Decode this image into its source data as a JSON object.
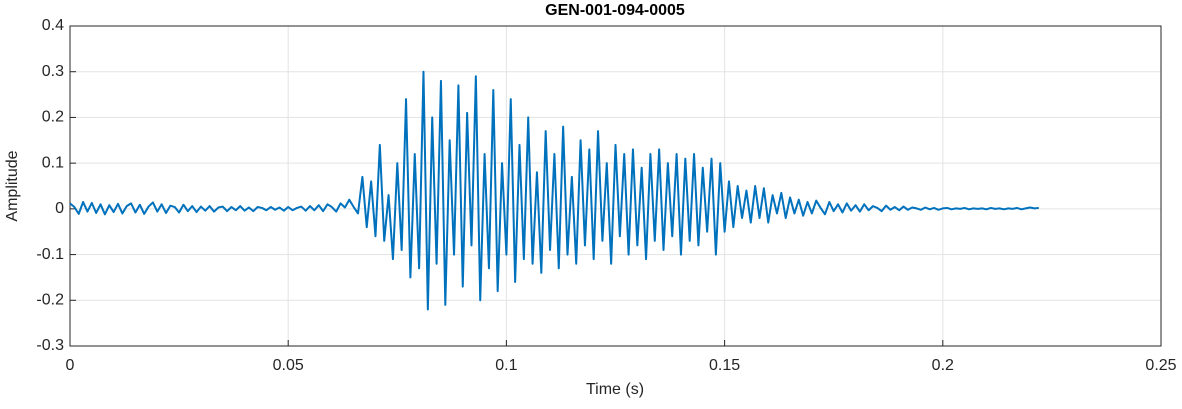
{
  "chart_data": {
    "type": "line",
    "title": "GEN-001-094-0005",
    "x_label": "Time (s)",
    "y_label": "Amplitude",
    "color": "#0072BD",
    "grid": true,
    "xlim": [
      0,
      0.25
    ],
    "xticks": [
      0,
      0.05,
      0.1,
      0.15,
      0.2,
      0.25
    ],
    "ylim": [
      -0.3,
      0.4
    ],
    "yticks": [
      -0.3,
      -0.2,
      -0.1,
      0,
      0.1,
      0.2,
      0.3,
      0.4
    ],
    "x": [
      0,
      0.001,
      0.002,
      0.003,
      0.004,
      0.005,
      0.006,
      0.007,
      0.008,
      0.009,
      0.01,
      0.011,
      0.012,
      0.013,
      0.014,
      0.015,
      0.016,
      0.017,
      0.018,
      0.019,
      0.02,
      0.021,
      0.022,
      0.023,
      0.024,
      0.025,
      0.026,
      0.027,
      0.028,
      0.029,
      0.03,
      0.031,
      0.032,
      0.033,
      0.034,
      0.035,
      0.036,
      0.037,
      0.038,
      0.039,
      0.04,
      0.041,
      0.042,
      0.043,
      0.044,
      0.045,
      0.046,
      0.047,
      0.048,
      0.049,
      0.05,
      0.051,
      0.052,
      0.053,
      0.054,
      0.055,
      0.056,
      0.057,
      0.058,
      0.059,
      0.06,
      0.061,
      0.062,
      0.063,
      0.064,
      0.065,
      0.066,
      0.067,
      0.068,
      0.069,
      0.07,
      0.071,
      0.072,
      0.073,
      0.074,
      0.075,
      0.076,
      0.077,
      0.078,
      0.079,
      0.08,
      0.081,
      0.082,
      0.083,
      0.084,
      0.085,
      0.086,
      0.087,
      0.088,
      0.089,
      0.09,
      0.091,
      0.092,
      0.093,
      0.094,
      0.095,
      0.096,
      0.097,
      0.098,
      0.099,
      0.1,
      0.101,
      0.102,
      0.103,
      0.104,
      0.105,
      0.106,
      0.107,
      0.108,
      0.109,
      0.11,
      0.111,
      0.112,
      0.113,
      0.114,
      0.115,
      0.116,
      0.117,
      0.118,
      0.119,
      0.12,
      0.121,
      0.122,
      0.123,
      0.124,
      0.125,
      0.126,
      0.127,
      0.128,
      0.129,
      0.13,
      0.131,
      0.132,
      0.133,
      0.134,
      0.135,
      0.136,
      0.137,
      0.138,
      0.139,
      0.14,
      0.141,
      0.142,
      0.143,
      0.144,
      0.145,
      0.146,
      0.147,
      0.148,
      0.149,
      0.15,
      0.151,
      0.152,
      0.153,
      0.154,
      0.155,
      0.156,
      0.157,
      0.158,
      0.159,
      0.16,
      0.161,
      0.162,
      0.163,
      0.164,
      0.165,
      0.166,
      0.167,
      0.168,
      0.169,
      0.17,
      0.171,
      0.172,
      0.173,
      0.174,
      0.175,
      0.176,
      0.177,
      0.178,
      0.179,
      0.18,
      0.181,
      0.182,
      0.183,
      0.184,
      0.185,
      0.186,
      0.187,
      0.188,
      0.189,
      0.19,
      0.191,
      0.192,
      0.193,
      0.194,
      0.195,
      0.196,
      0.197,
      0.198,
      0.199,
      0.2,
      0.201,
      0.202,
      0.203,
      0.204,
      0.205,
      0.206,
      0.207,
      0.208,
      0.209,
      0.21,
      0.211,
      0.212,
      0.213,
      0.214,
      0.215,
      0.216,
      0.217,
      0.218,
      0.219,
      0.22,
      0.221,
      0.222
    ],
    "values": [
      0.012,
      0.004,
      -0.011,
      0.015,
      -0.006,
      0.013,
      -0.009,
      0.01,
      -0.012,
      0.008,
      -0.007,
      0.011,
      -0.01,
      0.006,
      0.012,
      -0.008,
      0.009,
      -0.011,
      0.005,
      0.014,
      -0.006,
      0.01,
      -0.009,
      0.007,
      0.004,
      -0.008,
      0.009,
      -0.005,
      0.006,
      -0.007,
      0.005,
      -0.004,
      0.006,
      -0.006,
      0.003,
      0.005,
      -0.005,
      0.004,
      -0.003,
      0.006,
      -0.004,
      0.003,
      -0.005,
      0.004,
      0.002,
      -0.003,
      0.004,
      -0.002,
      0.003,
      -0.004,
      0.004,
      -0.003,
      0.002,
      0.005,
      -0.004,
      0.006,
      -0.003,
      0.008,
      -0.005,
      0.01,
      0.004,
      -0.006,
      0.012,
      0.003,
      0.02,
      0.004,
      -0.01,
      0.07,
      -0.04,
      0.06,
      -0.06,
      0.14,
      -0.07,
      0.03,
      -0.11,
      0.1,
      -0.09,
      0.24,
      -0.15,
      0.12,
      -0.13,
      0.3,
      -0.22,
      0.2,
      -0.12,
      0.28,
      -0.21,
      0.15,
      -0.1,
      0.27,
      -0.17,
      0.21,
      -0.08,
      0.29,
      -0.2,
      0.12,
      -0.13,
      0.26,
      -0.18,
      0.1,
      -0.1,
      0.24,
      -0.16,
      0.14,
      -0.11,
      0.2,
      -0.12,
      0.08,
      -0.14,
      0.17,
      -0.09,
      0.12,
      -0.13,
      0.18,
      -0.1,
      0.07,
      -0.12,
      0.15,
      -0.08,
      0.13,
      -0.11,
      0.17,
      -0.07,
      0.1,
      -0.12,
      0.14,
      -0.06,
      0.12,
      -0.1,
      0.13,
      -0.08,
      0.09,
      -0.11,
      0.12,
      -0.07,
      0.13,
      -0.09,
      0.1,
      -0.06,
      0.12,
      -0.1,
      0.11,
      -0.07,
      0.12,
      -0.08,
      0.09,
      -0.05,
      0.11,
      -0.1,
      0.1,
      -0.05,
      0.06,
      -0.04,
      0.05,
      -0.02,
      0.04,
      -0.03,
      0.05,
      -0.02,
      0.045,
      -0.03,
      0.03,
      -0.01,
      0.035,
      -0.02,
      0.025,
      -0.01,
      0.02,
      -0.015,
      0.015,
      -0.01,
      0.018,
      0.002,
      -0.012,
      0.015,
      -0.005,
      0.01,
      -0.008,
      0.012,
      -0.004,
      0.008,
      -0.006,
      0.01,
      -0.003,
      0.006,
      0.002,
      -0.005,
      0.007,
      -0.002,
      0.004,
      -0.003,
      0.005,
      -0.002,
      0.003,
      0.001,
      -0.002,
      0.003,
      -0.001,
      0.002,
      -0.002,
      0.001,
      0.002,
      -0.001,
      0.001,
      0,
      0.002,
      -0.001,
      0.001,
      0,
      0.001,
      -0.001,
      0.002,
      0,
      0.001,
      -0.001,
      0.001,
      0,
      0.002,
      -0.001,
      0.001,
      0.003,
      0.001,
      0.002
    ]
  }
}
